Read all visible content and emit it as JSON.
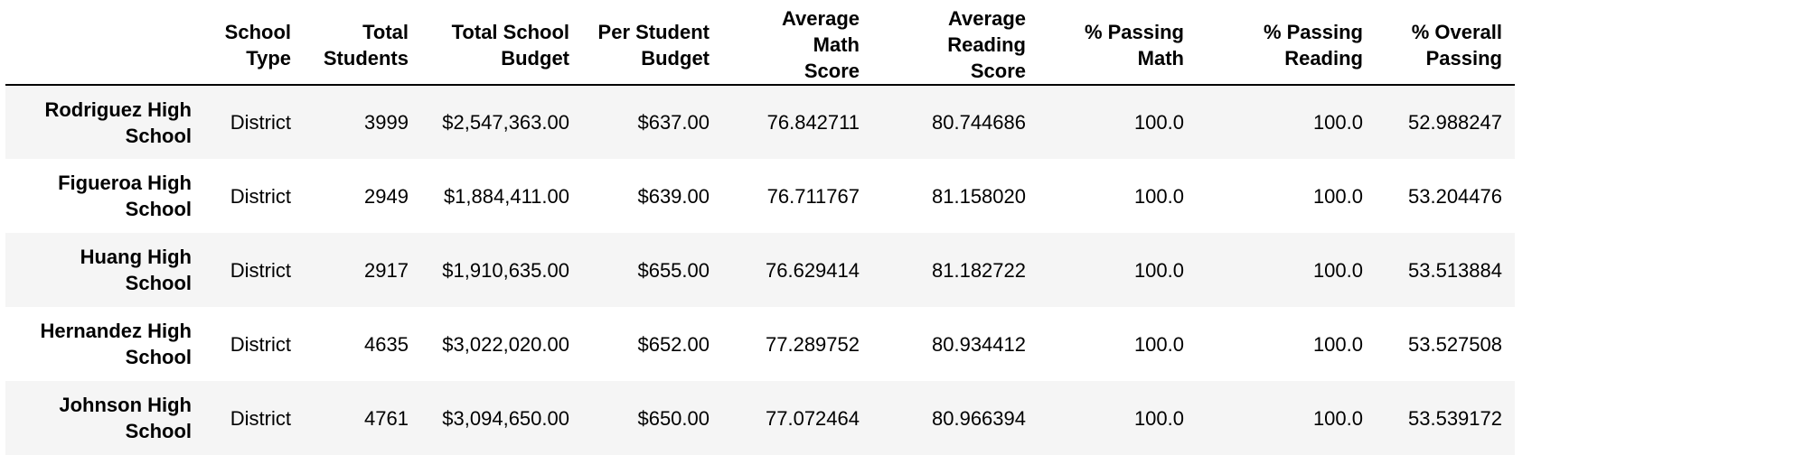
{
  "table": {
    "columns": [
      {
        "line1": "School",
        "line2": "Type"
      },
      {
        "line1": "Total",
        "line2": "Students"
      },
      {
        "line1": "Total School",
        "line2": "Budget"
      },
      {
        "line1": "Per Student",
        "line2": "Budget"
      },
      {
        "line1": "Average Math",
        "line2": "Score"
      },
      {
        "line1": "Average Reading",
        "line2": "Score"
      },
      {
        "line1": "% Passing",
        "line2": "Math"
      },
      {
        "line1": "% Passing",
        "line2": "Reading"
      },
      {
        "line1": "% Overall",
        "line2": "Passing"
      }
    ],
    "rows": [
      {
        "name_line1": "Rodriguez High",
        "name_line2": "School",
        "cells": [
          "District",
          "3999",
          "$2,547,363.00",
          "$637.00",
          "76.842711",
          "80.744686",
          "100.0",
          "100.0",
          "52.988247"
        ]
      },
      {
        "name_line1": "Figueroa High",
        "name_line2": "School",
        "cells": [
          "District",
          "2949",
          "$1,884,411.00",
          "$639.00",
          "76.711767",
          "81.158020",
          "100.0",
          "100.0",
          "53.204476"
        ]
      },
      {
        "name_line1": "Huang High",
        "name_line2": "School",
        "cells": [
          "District",
          "2917",
          "$1,910,635.00",
          "$655.00",
          "76.629414",
          "81.182722",
          "100.0",
          "100.0",
          "53.513884"
        ]
      },
      {
        "name_line1": "Hernandez High",
        "name_line2": "School",
        "cells": [
          "District",
          "4635",
          "$3,022,020.00",
          "$652.00",
          "77.289752",
          "80.934412",
          "100.0",
          "100.0",
          "53.527508"
        ]
      },
      {
        "name_line1": "Johnson High",
        "name_line2": "School",
        "cells": [
          "District",
          "4761",
          "$3,094,650.00",
          "$650.00",
          "77.072464",
          "80.966394",
          "100.0",
          "100.0",
          "53.539172"
        ]
      }
    ]
  },
  "colors": {
    "stripe": "#f5f5f5",
    "background": "#ffffff",
    "rule": "#000000",
    "text": "#000000"
  }
}
